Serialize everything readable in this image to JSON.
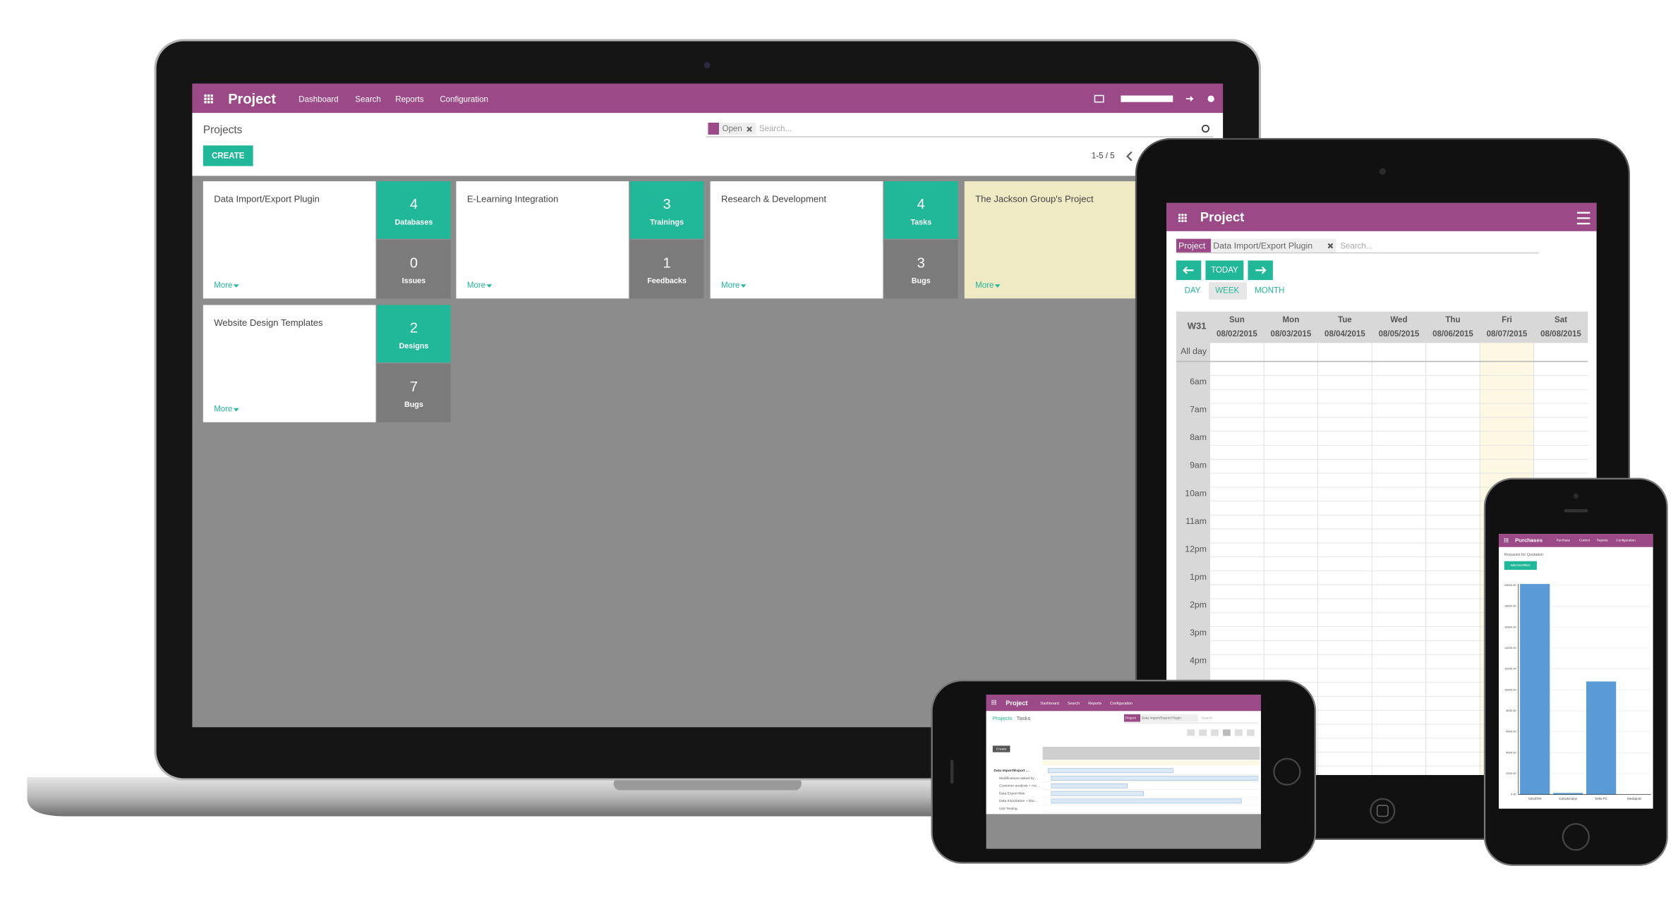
{
  "laptop": {
    "app": "Project",
    "menu": [
      "Dashboard",
      "Search",
      "Reports",
      "Configuration"
    ],
    "breadcrumb": "Projects",
    "filter": "Open",
    "search_placeholder": "Search...",
    "create": "CREATE",
    "pager": "1-5 / 5",
    "projects": [
      {
        "name": "Data Import/Export Plugin",
        "more": "More",
        "stats": [
          {
            "count": 4,
            "label": "Databases"
          },
          {
            "count": 0,
            "label": "Issues"
          }
        ]
      },
      {
        "name": "E-Learning Integration",
        "more": "More",
        "stats": [
          {
            "count": 3,
            "label": "Trainings"
          },
          {
            "count": 1,
            "label": "Feedbacks"
          }
        ]
      },
      {
        "name": "Research & Development",
        "more": "More",
        "stats": [
          {
            "count": 4,
            "label": "Tasks"
          },
          {
            "count": 3,
            "label": "Bugs"
          }
        ]
      },
      {
        "name": "The Jackson Group's Project",
        "more": "More"
      },
      {
        "name": "Website Design Templates",
        "more": "More",
        "stats": [
          {
            "count": 2,
            "label": "Designs"
          },
          {
            "count": 7,
            "label": "Bugs"
          }
        ]
      }
    ]
  },
  "tablet": {
    "app": "Project",
    "facet_label": "Project",
    "facet_value": "Data Import/Export Plugin",
    "search_placeholder": "Search...",
    "today": "TODAY",
    "views": [
      "DAY",
      "WEEK",
      "MONTH"
    ],
    "week": "W31",
    "days": [
      {
        "name": "Sun",
        "date": "08/02/2015"
      },
      {
        "name": "Mon",
        "date": "08/03/2015"
      },
      {
        "name": "Tue",
        "date": "08/04/2015"
      },
      {
        "name": "Wed",
        "date": "08/05/2015"
      },
      {
        "name": "Thu",
        "date": "08/06/2015"
      },
      {
        "name": "Fri",
        "date": "08/07/2015"
      },
      {
        "name": "Sat",
        "date": "08/08/2015"
      }
    ],
    "all_day": "All day",
    "hours": [
      "6am",
      "7am",
      "8am",
      "9am",
      "10am",
      "11am",
      "12pm",
      "1pm",
      "2pm",
      "3pm",
      "4pm"
    ]
  },
  "phone_landscape": {
    "app": "Project",
    "menu": [
      "Dashboard",
      "Search",
      "Reports",
      "Configuration"
    ],
    "breadcrumb": [
      "Projects",
      "Tasks"
    ],
    "facet_label": "Project",
    "facet_value": "Data Import/Export Plugin",
    "search_placeholder": "Search",
    "create": "Create",
    "tasks": [
      "Data Import/Export ...",
      "Modifications asked by ...",
      "Customer analysis + Arc...",
      "Data Export flow",
      "Data Importation + Doc...",
      "Unit Testing"
    ]
  },
  "phone_portrait": {
    "app": "Purchases",
    "menu": [
      "Purchase",
      "Control",
      "Reports",
      "Configuration"
    ],
    "breadcrumb": "Requests for Quotation",
    "measures": "MEASURES",
    "chart": {
      "type": "bar",
      "categories": [
        "ASUSTeK",
        "Camptocamp",
        "Delta PC",
        "Mediapole"
      ],
      "values": [
        20118,
        150,
        10800,
        0
      ],
      "color": "#5b9bd5",
      "ylim": [
        0,
        20118
      ],
      "yticks": [
        {
          "value": 0,
          "label": "0.00"
        },
        {
          "value": 2000,
          "label": "2000.00"
        },
        {
          "value": 4000,
          "label": "4000.00"
        },
        {
          "value": 6000,
          "label": "6000.00"
        },
        {
          "value": 8000,
          "label": "8000.00"
        },
        {
          "value": 10000,
          "label": "10000.00"
        },
        {
          "value": 12000,
          "label": "12000.00"
        },
        {
          "value": 14000,
          "label": "14000.00"
        },
        {
          "value": 16000,
          "label": "16000.00"
        },
        {
          "value": 18000,
          "label": "18000.00"
        },
        {
          "value": 20000,
          "label": "20000.00"
        }
      ],
      "grid": true
    }
  }
}
